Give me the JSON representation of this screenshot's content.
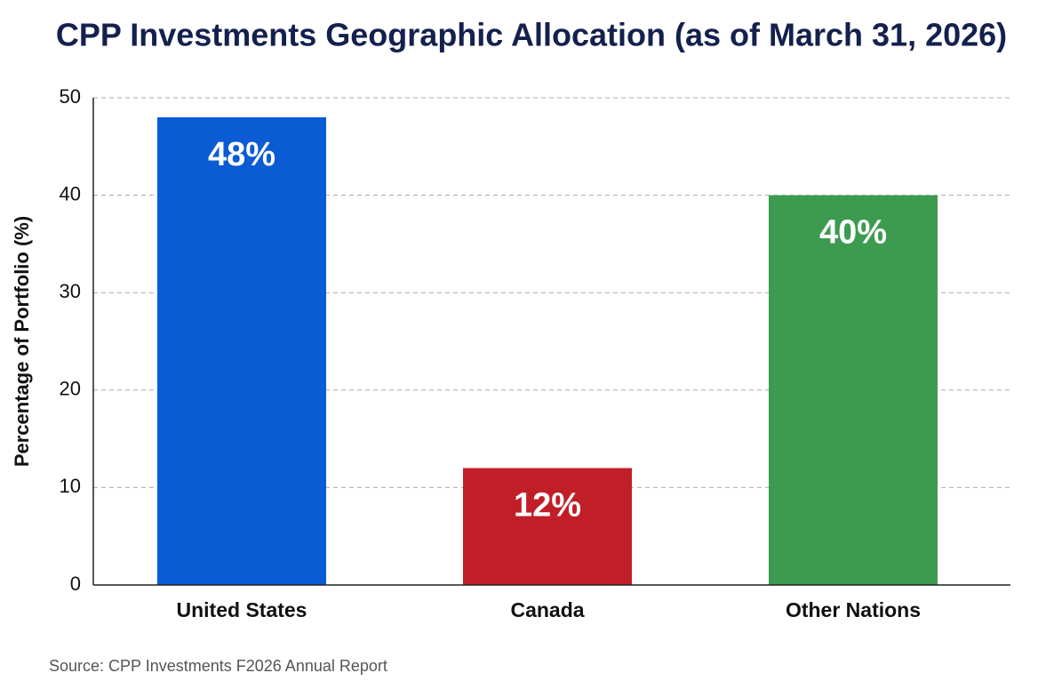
{
  "chart_data": {
    "type": "bar",
    "title": "CPP Investments Geographic Allocation (as of March 31, 2026)",
    "y_label": "Percentage of Portfolio (%)",
    "source": "Source: CPP Investments F2026 Annual Report",
    "categories": [
      "United States",
      "Canada",
      "Other Nations"
    ],
    "values": [
      48,
      12,
      40
    ],
    "value_labels": [
      "48%",
      "12%",
      "40%"
    ],
    "colors": [
      "#0a5bd4",
      "#c01f28",
      "#3d9b50"
    ],
    "ylim": [
      0,
      50
    ],
    "yticks": [
      0,
      10,
      20,
      30,
      40,
      50
    ],
    "grid": true
  }
}
